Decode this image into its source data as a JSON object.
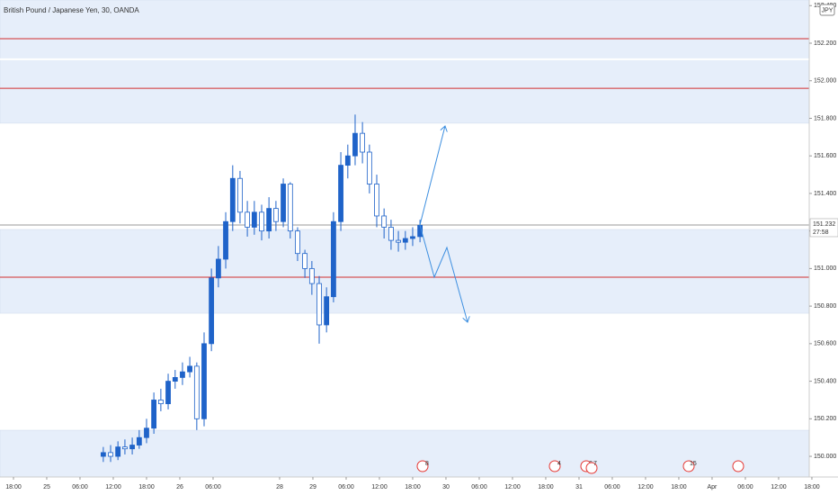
{
  "chart_data": {
    "type": "candlestick",
    "title": "British Pound / Japanese Yen, 30, OANDA",
    "currency": "JPY",
    "xlim": [
      -0.405,
      23.92
    ],
    "xticks": [
      {
        "value": 0,
        "label": "18:00"
      },
      {
        "value": 1,
        "label": "25"
      },
      {
        "value": 2,
        "label": "06:00"
      },
      {
        "value": 3,
        "label": "12:00"
      },
      {
        "value": 4,
        "label": "18:00"
      },
      {
        "value": 5,
        "label": "26"
      },
      {
        "value": 6,
        "label": "06:00"
      },
      {
        "value": 8,
        "label": "28"
      },
      {
        "value": 9,
        "label": "29"
      },
      {
        "value": 10,
        "label": "06:00"
      },
      {
        "value": 11,
        "label": "12:00"
      },
      {
        "value": 12,
        "label": "18:00"
      },
      {
        "value": 13,
        "label": "30"
      },
      {
        "value": 14,
        "label": "06:00"
      },
      {
        "value": 15,
        "label": "12:00"
      },
      {
        "value": 16,
        "label": "18:00"
      },
      {
        "value": 17,
        "label": "31"
      },
      {
        "value": 18,
        "label": "06:00"
      },
      {
        "value": 19,
        "label": "12:00"
      },
      {
        "value": 20,
        "label": "18:00"
      },
      {
        "value": 21,
        "label": "Apr"
      },
      {
        "value": 22,
        "label": "06:00"
      },
      {
        "value": 23,
        "label": "12:00"
      },
      {
        "value": 24,
        "label": "18:00"
      }
    ],
    "ylim": [
      149.89,
      152.43
    ],
    "yticks": [
      {
        "value": 150.0,
        "label": "150.000"
      },
      {
        "value": 150.2,
        "label": "150.200"
      },
      {
        "value": 150.4,
        "label": "150.400"
      },
      {
        "value": 150.6,
        "label": "150.600"
      },
      {
        "value": 150.8,
        "label": "150.800"
      },
      {
        "value": 151.0,
        "label": "151.000"
      },
      {
        "value": 151.2,
        "label": "151.200"
      },
      {
        "value": 151.4,
        "label": "151.400"
      },
      {
        "value": 151.6,
        "label": "151.600"
      },
      {
        "value": 151.8,
        "label": "151.800"
      },
      {
        "value": 152.0,
        "label": "152.000"
      },
      {
        "value": 152.2,
        "label": "152.200"
      },
      {
        "value": 152.4,
        "label": "152.400"
      }
    ],
    "up_color": "#1f63c9",
    "down_color": "#ffffff",
    "zone_color": "#e6eefa",
    "zones": [
      [
        151.774,
        152.43
      ],
      [
        150.762,
        151.208
      ],
      [
        149.89,
        150.139
      ]
    ],
    "zone_divider": 152.114,
    "level_color": "#d32f2f",
    "levels": [
      152.224,
      151.96,
      150.954
    ],
    "last_price": 151.232,
    "countdown": "27:58",
    "events": [
      "8",
      "4",
      "2",
      "7",
      "15"
    ],
    "x": [
      2.7,
      2.92,
      3.14,
      3.35,
      3.57,
      3.78,
      4.0,
      4.22,
      4.43,
      4.65,
      4.86,
      5.08,
      5.3,
      5.51,
      5.73,
      5.95,
      6.16,
      6.38,
      6.59,
      6.81,
      7.03,
      7.24,
      7.46,
      7.68,
      7.89,
      8.11,
      8.32,
      8.54,
      8.76,
      8.97,
      9.19,
      9.41,
      9.62,
      9.84,
      10.05,
      10.27,
      10.49,
      10.7,
      10.92,
      11.14,
      11.35,
      11.57,
      11.78,
      12.0,
      12.22
    ],
    "open": [
      150.0,
      150.02,
      150.0,
      150.05,
      150.04,
      150.06,
      150.1,
      150.15,
      150.3,
      150.28,
      150.4,
      150.42,
      150.45,
      150.48,
      150.2,
      150.6,
      150.95,
      151.05,
      151.25,
      151.48,
      151.3,
      151.22,
      151.3,
      151.2,
      151.32,
      151.25,
      151.45,
      151.2,
      151.08,
      151.0,
      150.92,
      150.7,
      150.85,
      151.25,
      151.55,
      151.6,
      151.72,
      151.62,
      151.45,
      151.28,
      151.22,
      151.15,
      151.14,
      151.16,
      151.17
    ],
    "high": [
      150.05,
      150.06,
      150.08,
      150.09,
      150.1,
      150.14,
      150.2,
      150.34,
      150.36,
      150.44,
      150.46,
      150.5,
      150.53,
      150.5,
      150.66,
      151.0,
      151.12,
      151.3,
      151.55,
      151.52,
      151.36,
      151.36,
      151.34,
      151.38,
      151.36,
      151.48,
      151.46,
      151.22,
      151.1,
      151.04,
      150.96,
      150.9,
      151.3,
      151.62,
      151.66,
      151.82,
      151.78,
      151.66,
      151.5,
      151.32,
      151.26,
      151.2,
      151.2,
      151.22,
      151.26
    ],
    "low": [
      149.97,
      149.97,
      149.98,
      150.01,
      150.01,
      150.04,
      150.07,
      150.12,
      150.24,
      150.25,
      150.36,
      150.38,
      150.42,
      150.14,
      150.16,
      150.56,
      150.9,
      151.0,
      151.2,
      151.24,
      151.17,
      151.18,
      151.15,
      151.16,
      151.2,
      151.22,
      151.16,
      151.04,
      150.95,
      150.86,
      150.6,
      150.66,
      150.82,
      151.2,
      151.48,
      151.55,
      151.56,
      151.4,
      151.22,
      151.16,
      151.1,
      151.09,
      151.1,
      151.12,
      151.14
    ],
    "close": [
      150.02,
      150.0,
      150.05,
      150.04,
      150.06,
      150.1,
      150.15,
      150.3,
      150.28,
      150.4,
      150.42,
      150.45,
      150.48,
      150.2,
      150.6,
      150.95,
      151.05,
      151.25,
      151.48,
      151.3,
      151.22,
      151.3,
      151.2,
      151.32,
      151.25,
      151.45,
      151.2,
      151.08,
      151.0,
      150.92,
      150.7,
      150.85,
      151.25,
      151.55,
      151.6,
      151.72,
      151.62,
      151.45,
      151.28,
      151.22,
      151.15,
      151.14,
      151.16,
      151.17,
      151.23
    ]
  }
}
